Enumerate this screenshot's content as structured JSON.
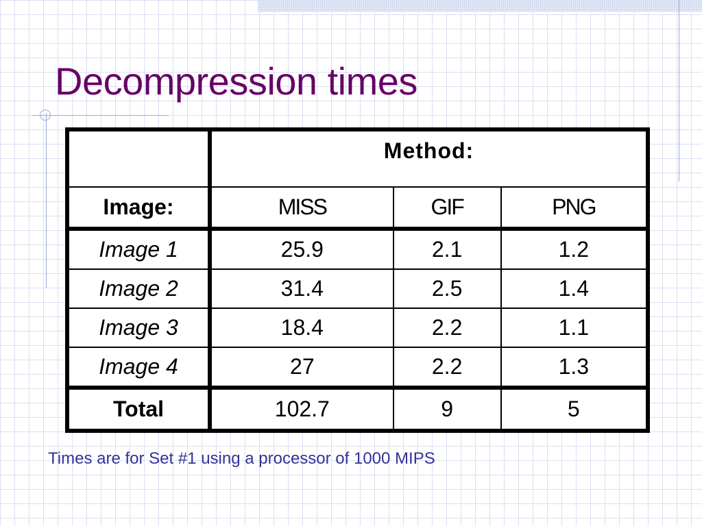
{
  "slide": {
    "title": "Decompression times",
    "caption": "Times are for Set #1 using a processor of 1000 MIPS"
  },
  "table": {
    "group_header": "Method:",
    "row_header": "Image:",
    "columns": [
      "MISS",
      "GIF",
      "PNG"
    ],
    "rows": [
      {
        "label": "Image 1",
        "values": [
          "25.9",
          "2.1",
          "1.2"
        ]
      },
      {
        "label": "Image 2",
        "values": [
          "31.4",
          "2.5",
          "1.4"
        ]
      },
      {
        "label": "Image 3",
        "values": [
          "18.4",
          "2.2",
          "1.1"
        ]
      },
      {
        "label": "Image 4",
        "values": [
          "27",
          "2.2",
          "1.3"
        ]
      }
    ],
    "total": {
      "label": "Total",
      "values": [
        "102.7",
        "9",
        "5"
      ]
    }
  },
  "colors": {
    "title": "#660066",
    "caption": "#333399",
    "grid_lines": "#dcdff0",
    "accent_lines": "#9aa8d8"
  }
}
